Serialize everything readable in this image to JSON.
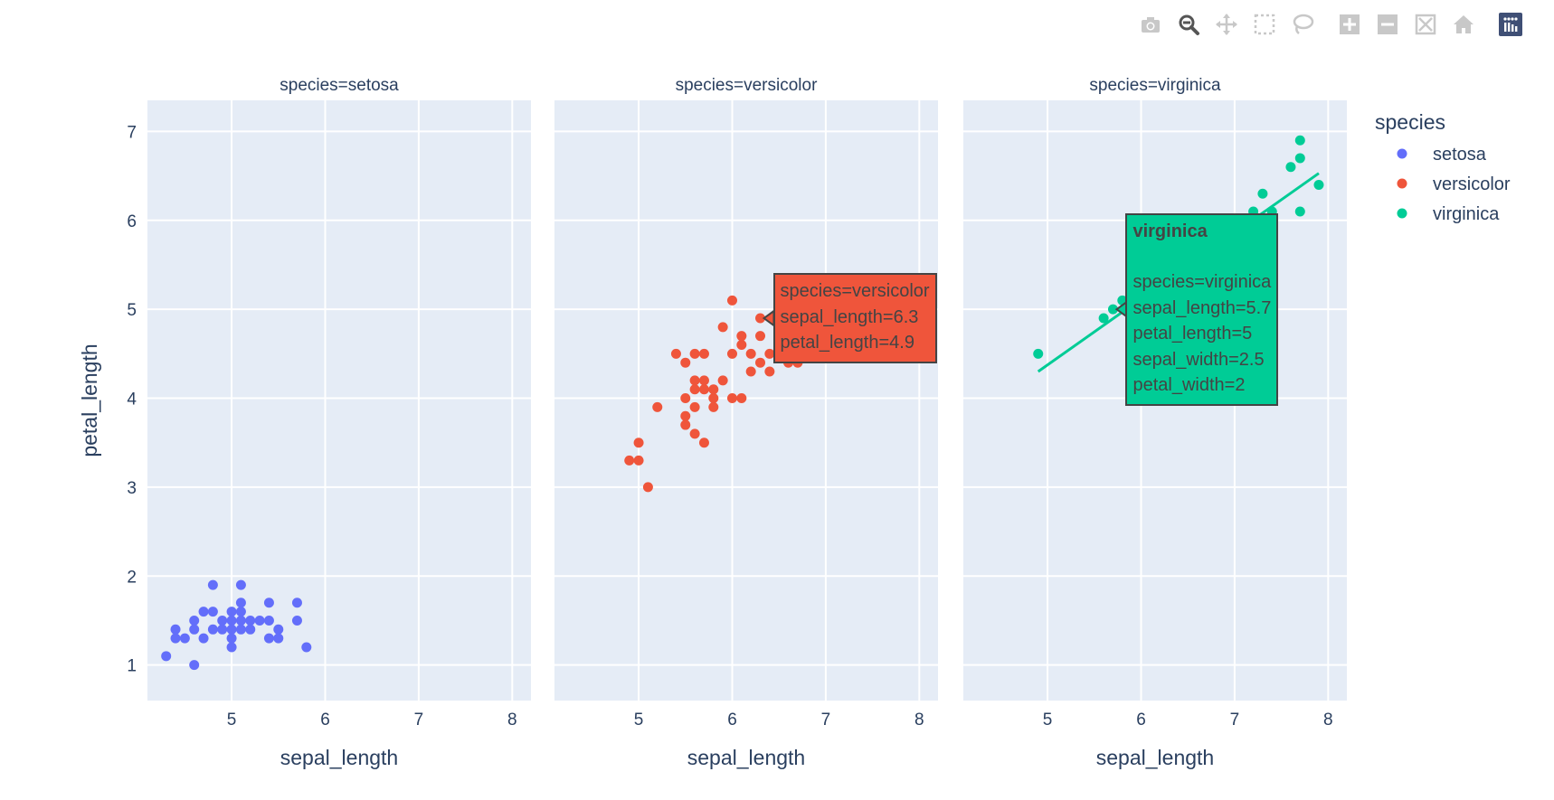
{
  "modebar": {
    "buttons": [
      {
        "name": "camera-icon",
        "title": "Download plot as a png"
      },
      {
        "name": "zoom-icon",
        "title": "Zoom"
      },
      {
        "name": "pan-icon",
        "title": "Pan"
      },
      {
        "name": "box-select-icon",
        "title": "Box Select"
      },
      {
        "name": "lasso-select-icon",
        "title": "Lasso Select"
      },
      {
        "name": "zoom-in-icon",
        "title": "Zoom in"
      },
      {
        "name": "zoom-out-icon",
        "title": "Zoom out"
      },
      {
        "name": "autoscale-icon",
        "title": "Autoscale"
      },
      {
        "name": "reset-axes-icon",
        "title": "Reset axes"
      },
      {
        "name": "plotly-logo-icon",
        "title": "Produced with Plotly"
      }
    ],
    "active": "zoom-icon"
  },
  "chart_data": {
    "type": "scatter",
    "facet_titles": [
      "species=setosa",
      "species=versicolor",
      "species=virginica"
    ],
    "xlabel": "sepal_length",
    "ylabel": "petal_length",
    "xlim": [
      4.1,
      8.2
    ],
    "ylim": [
      0.6,
      7.35
    ],
    "x_ticks": [
      "5",
      "6",
      "7",
      "8"
    ],
    "y_ticks": [
      "1",
      "2",
      "3",
      "4",
      "5",
      "6",
      "7"
    ],
    "grid": true,
    "legend": {
      "title": "species",
      "placement": "right",
      "entries": [
        "setosa",
        "versicolor",
        "virginica"
      ]
    },
    "series": [
      {
        "name": "setosa",
        "color": "#636efa",
        "facet": 0,
        "points": [
          [
            4.3,
            1.1
          ],
          [
            4.4,
            1.3
          ],
          [
            4.4,
            1.4
          ],
          [
            4.5,
            1.3
          ],
          [
            4.6,
            1.0
          ],
          [
            4.6,
            1.4
          ],
          [
            4.6,
            1.5
          ],
          [
            4.7,
            1.3
          ],
          [
            4.7,
            1.6
          ],
          [
            4.8,
            1.4
          ],
          [
            4.8,
            1.6
          ],
          [
            4.8,
            1.9
          ],
          [
            4.9,
            1.4
          ],
          [
            4.9,
            1.5
          ],
          [
            5.0,
            1.2
          ],
          [
            5.0,
            1.3
          ],
          [
            5.0,
            1.4
          ],
          [
            5.0,
            1.5
          ],
          [
            5.0,
            1.6
          ],
          [
            5.1,
            1.4
          ],
          [
            5.1,
            1.5
          ],
          [
            5.1,
            1.6
          ],
          [
            5.1,
            1.7
          ],
          [
            5.1,
            1.9
          ],
          [
            5.2,
            1.4
          ],
          [
            5.2,
            1.5
          ],
          [
            5.3,
            1.5
          ],
          [
            5.4,
            1.3
          ],
          [
            5.4,
            1.5
          ],
          [
            5.4,
            1.7
          ],
          [
            5.5,
            1.3
          ],
          [
            5.5,
            1.4
          ],
          [
            5.7,
            1.5
          ],
          [
            5.7,
            1.7
          ],
          [
            5.8,
            1.2
          ]
        ]
      },
      {
        "name": "versicolor",
        "color": "#ef553b",
        "facet": 1,
        "points": [
          [
            4.9,
            3.3
          ],
          [
            5.0,
            3.3
          ],
          [
            5.0,
            3.5
          ],
          [
            5.1,
            3.0
          ],
          [
            5.2,
            3.9
          ],
          [
            5.4,
            4.5
          ],
          [
            5.5,
            3.7
          ],
          [
            5.5,
            3.8
          ],
          [
            5.5,
            4.0
          ],
          [
            5.5,
            4.4
          ],
          [
            5.6,
            3.6
          ],
          [
            5.6,
            3.9
          ],
          [
            5.6,
            4.1
          ],
          [
            5.6,
            4.2
          ],
          [
            5.6,
            4.5
          ],
          [
            5.7,
            3.5
          ],
          [
            5.7,
            4.1
          ],
          [
            5.7,
            4.2
          ],
          [
            5.7,
            4.5
          ],
          [
            5.8,
            3.9
          ],
          [
            5.8,
            4.0
          ],
          [
            5.8,
            4.1
          ],
          [
            5.9,
            4.2
          ],
          [
            5.9,
            4.8
          ],
          [
            6.0,
            4.0
          ],
          [
            6.0,
            4.5
          ],
          [
            6.0,
            5.1
          ],
          [
            6.1,
            4.0
          ],
          [
            6.1,
            4.6
          ],
          [
            6.1,
            4.7
          ],
          [
            6.2,
            4.3
          ],
          [
            6.2,
            4.5
          ],
          [
            6.3,
            4.4
          ],
          [
            6.3,
            4.7
          ],
          [
            6.3,
            4.9
          ],
          [
            6.4,
            4.3
          ],
          [
            6.4,
            4.5
          ],
          [
            6.6,
            4.4
          ],
          [
            6.7,
            4.4
          ]
        ]
      },
      {
        "name": "virginica",
        "color": "#00cc96",
        "facet": 2,
        "points": [
          [
            4.9,
            4.5
          ],
          [
            5.6,
            4.9
          ],
          [
            5.7,
            5.0
          ],
          [
            5.8,
            5.1
          ],
          [
            7.2,
            6.1
          ],
          [
            7.3,
            6.3
          ],
          [
            7.4,
            6.1
          ],
          [
            7.6,
            6.6
          ],
          [
            7.7,
            6.1
          ],
          [
            7.7,
            6.7
          ],
          [
            7.7,
            6.9
          ],
          [
            7.9,
            6.4
          ]
        ],
        "trendline": [
          [
            4.9,
            4.3
          ],
          [
            7.9,
            6.53
          ]
        ]
      }
    ],
    "hover": [
      {
        "facet": 1,
        "anchor": [
          6.3,
          4.9
        ],
        "side": "right",
        "color": "#ef553b",
        "title": "",
        "lines": [
          "species=versicolor",
          "sepal_length=6.3",
          "petal_length=4.9"
        ]
      },
      {
        "facet": 2,
        "anchor": [
          5.7,
          5.0
        ],
        "side": "right",
        "color": "#00cc96",
        "title": "virginica",
        "lines": [
          "species=virginica",
          "sepal_length=5.7",
          "petal_length=5",
          "sepal_width=2.5",
          "petal_width=2"
        ]
      }
    ]
  }
}
